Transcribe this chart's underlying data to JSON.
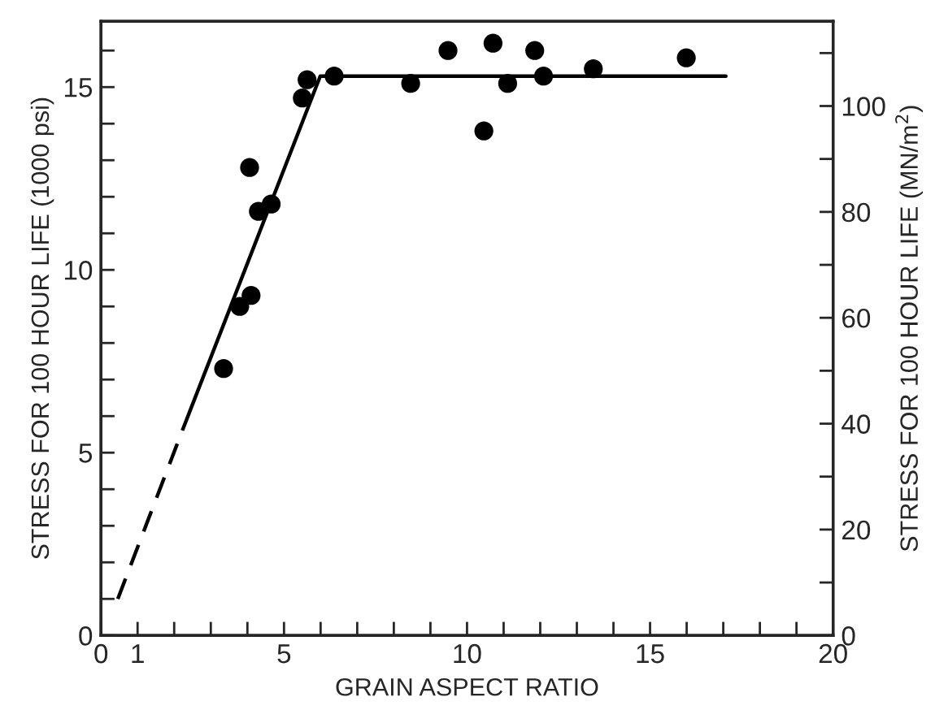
{
  "chart_data": {
    "type": "scatter",
    "xlabel": "GRAIN ASPECT RATIO",
    "ylabel": "STRESS FOR 100 HOUR LIFE (1000 psi)",
    "y2label": "STRESS FOR 100 HOUR LIFE (MN/m$^{2}$)",
    "series": [
      {
        "color": "#000000",
        "marker": "circle",
        "x": [
          3.35,
          3.79,
          4.1,
          4.06,
          4.3,
          4.65,
          5.5,
          5.63,
          6.37,
          8.46,
          9.48,
          10.46,
          10.71,
          11.11,
          11.85,
          12.09,
          13.45,
          15.99
        ],
        "values": [
          7.3,
          9.0,
          9.3,
          12.8,
          11.6,
          11.8,
          14.7,
          15.2,
          15.3,
          15.1,
          16.0,
          13.8,
          16.2,
          15.1,
          16.0,
          15.3,
          15.5,
          15.8
        ]
      },
      {
        "type": "line",
        "color": "#000000",
        "line_style": "dashed",
        "x": [
          0.46,
          2.24
        ],
        "values": [
          1.0,
          5.65
        ]
      },
      {
        "type": "line",
        "color": "#000000",
        "line_style": "solid",
        "x": [
          2.24,
          5.99,
          17.07
        ],
        "values": [
          5.65,
          15.3,
          15.3
        ]
      }
    ],
    "xlim": [
      0,
      20
    ],
    "ylim": [
      0,
      16.8
    ],
    "y2lim": [
      0,
      116
    ],
    "xticks": [
      0,
      1,
      {
        "value": 2,
        "label": null
      },
      {
        "value": 3,
        "label": null
      },
      {
        "value": 4,
        "label": null
      },
      5,
      {
        "value": 6,
        "label": null
      },
      {
        "value": 7,
        "label": null
      },
      {
        "value": 8,
        "label": null
      },
      {
        "value": 9,
        "label": null
      },
      10,
      {
        "value": 11,
        "label": null
      },
      {
        "value": 12,
        "label": null
      },
      {
        "value": 13,
        "label": null
      },
      {
        "value": 14,
        "label": null
      },
      15,
      {
        "value": 16,
        "label": null
      },
      {
        "value": 17,
        "label": null
      },
      {
        "value": 18,
        "label": null
      },
      {
        "value": 19,
        "label": null
      },
      20
    ],
    "yticks": [
      0,
      {
        "value": 1,
        "label": null
      },
      {
        "value": 2,
        "label": null
      },
      {
        "value": 3,
        "label": null
      },
      {
        "value": 4,
        "label": null
      },
      5,
      {
        "value": 6,
        "label": null
      },
      {
        "value": 7,
        "label": null
      },
      {
        "value": 8,
        "label": null
      },
      {
        "value": 9,
        "label": null
      },
      10,
      {
        "value": 11,
        "label": null
      },
      {
        "value": 12,
        "label": null
      },
      {
        "value": 13,
        "label": null
      },
      {
        "value": 14,
        "label": null
      },
      15,
      {
        "value": 16,
        "label": null
      }
    ],
    "y2ticks": [
      0,
      {
        "value": 10,
        "label": null
      },
      20,
      {
        "value": 30,
        "label": null
      },
      40,
      {
        "value": 50,
        "label": null
      },
      60,
      {
        "value": 70,
        "label": null
      },
      80,
      {
        "value": 90,
        "label": null
      },
      100,
      {
        "value": 110,
        "label": null
      }
    ],
    "grid": false,
    "legend": false
  }
}
